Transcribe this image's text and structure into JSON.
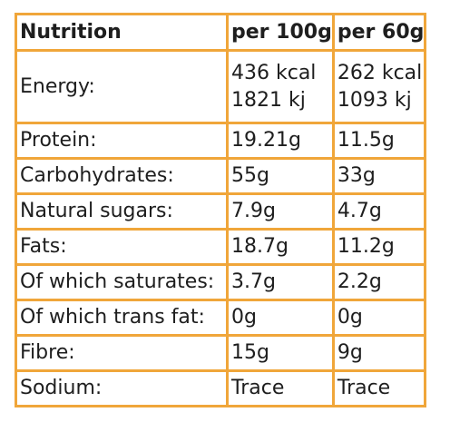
{
  "table": {
    "headers": [
      "Nutrition",
      "per 100g",
      "per 60g"
    ],
    "energy": {
      "label": "Energy:",
      "per_100g_kcal": "436 kcal",
      "per_100g_kj": "1821 kj",
      "per_60g_kcal": "262 kcal",
      "per_60g_kj": "1093 kj"
    },
    "rows": [
      {
        "label": "Protein:",
        "per_100g": "19.21g",
        "per_60g": "11.5g"
      },
      {
        "label": "Carbohydrates:",
        "per_100g": "55g",
        "per_60g": "33g"
      },
      {
        "label": "Natural sugars:",
        "per_100g": "7.9g",
        "per_60g": "4.7g"
      },
      {
        "label": "Fats:",
        "per_100g": "18.7g",
        "per_60g": "11.2g"
      },
      {
        "label": "Of which saturates:",
        "per_100g": "3.7g",
        "per_60g": "2.2g"
      },
      {
        "label": "Of which trans fat:",
        "per_100g": "0g",
        "per_60g": "0g"
      },
      {
        "label": "Fibre:",
        "per_100g": "15g",
        "per_60g": "9g"
      },
      {
        "label": "Sodium:",
        "per_100g": "Trace",
        "per_60g": "Trace"
      }
    ]
  },
  "colors": {
    "border": "#f0a63a",
    "text": "#1e1e1e"
  }
}
